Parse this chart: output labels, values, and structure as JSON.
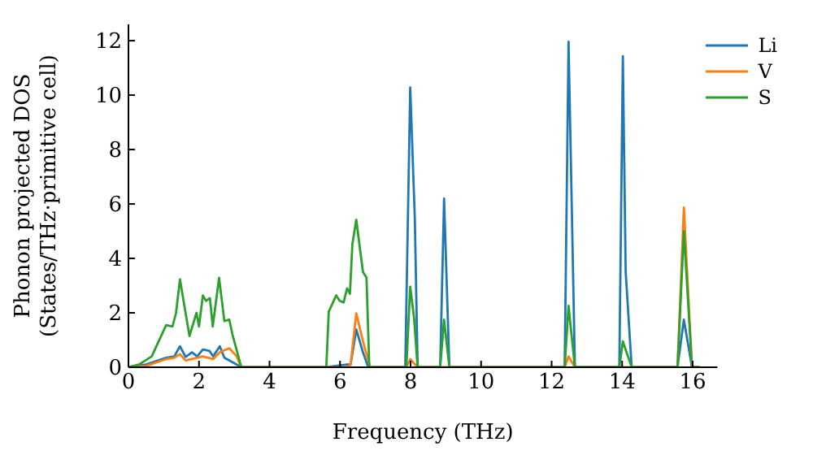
{
  "chart_data": {
    "type": "line",
    "xlabel": "Frequency (THz)",
    "ylabel": "Phonon projected DOS\n(States/THz·primitive cell)",
    "xlim": [
      0,
      16.7
    ],
    "ylim": [
      0,
      12.6
    ],
    "xticks": [
      0,
      2,
      4,
      6,
      8,
      10,
      12,
      14,
      16
    ],
    "yticks": [
      0,
      2,
      4,
      6,
      8,
      10,
      12
    ],
    "legend": "top right",
    "marker": "none",
    "line_style": "solid",
    "series": [
      {
        "name": "Li",
        "color": "#1f77b4",
        "x": [
          0,
          0.5,
          1.07,
          1.3,
          1.46,
          1.62,
          1.8,
          1.95,
          2.11,
          2.3,
          2.4,
          2.59,
          2.72,
          3.07,
          3.2,
          5.6,
          6.2,
          6.3,
          6.46,
          6.65,
          6.8,
          7.85,
          7.99,
          8.12,
          8.2,
          8.84,
          8.95,
          9.1,
          12.37,
          12.48,
          12.66,
          13.92,
          14.02,
          14.1,
          14.27,
          15.57,
          15.75,
          15.98,
          16.2
        ],
        "values": [
          0,
          0.1,
          0.35,
          0.4,
          0.77,
          0.38,
          0.55,
          0.4,
          0.65,
          0.6,
          0.4,
          0.77,
          0.35,
          0.1,
          0,
          0,
          0.1,
          0.1,
          1.39,
          0.55,
          0,
          0,
          10.28,
          5.5,
          0,
          0,
          6.2,
          0,
          0,
          11.96,
          0,
          0,
          11.43,
          3.5,
          0,
          0,
          1.75,
          0,
          0
        ]
      },
      {
        "name": "V",
        "color": "#ff7f0e",
        "x": [
          0,
          0.5,
          1.07,
          1.3,
          1.46,
          1.62,
          1.8,
          2.11,
          2.4,
          2.59,
          2.86,
          3.07,
          3.2,
          5.6,
          6.2,
          6.3,
          6.46,
          6.65,
          6.79,
          6.85,
          7.88,
          7.99,
          8.2,
          12.37,
          12.48,
          12.66,
          15.57,
          15.75,
          15.98,
          16.2
        ],
        "values": [
          0,
          0.05,
          0.3,
          0.35,
          0.48,
          0.25,
          0.3,
          0.4,
          0.3,
          0.55,
          0.7,
          0.4,
          0,
          0,
          0,
          0.1,
          1.98,
          0.95,
          0.3,
          0,
          0,
          0.3,
          0,
          0,
          0.4,
          0,
          0,
          5.87,
          0,
          0
        ]
      },
      {
        "name": "S",
        "color": "#2ca02c",
        "x": [
          0,
          0.3,
          0.66,
          1.07,
          1.25,
          1.35,
          1.46,
          1.73,
          1.93,
          2.0,
          2.11,
          2.2,
          2.31,
          2.39,
          2.57,
          2.72,
          2.86,
          2.95,
          3.2,
          5.61,
          5.68,
          5.89,
          5.99,
          6.1,
          6.2,
          6.28,
          6.35,
          6.46,
          6.65,
          6.75,
          6.83,
          7.88,
          7.99,
          8.1,
          8.2,
          8.84,
          8.95,
          9.1,
          12.37,
          12.48,
          12.66,
          13.92,
          14.02,
          14.27,
          15.57,
          15.75,
          15.98,
          16.2
        ],
        "values": [
          0,
          0.1,
          0.4,
          1.55,
          1.5,
          2.0,
          3.23,
          1.15,
          2.0,
          1.5,
          2.64,
          2.44,
          2.54,
          1.5,
          3.29,
          1.7,
          1.75,
          1.2,
          0,
          0,
          2.04,
          2.64,
          2.44,
          2.38,
          2.9,
          2.7,
          4.52,
          5.42,
          3.5,
          3.3,
          0,
          0,
          2.96,
          1.8,
          0,
          0,
          1.75,
          0,
          0,
          2.26,
          0,
          0,
          0.95,
          0,
          0,
          5.0,
          0,
          0
        ]
      }
    ]
  }
}
